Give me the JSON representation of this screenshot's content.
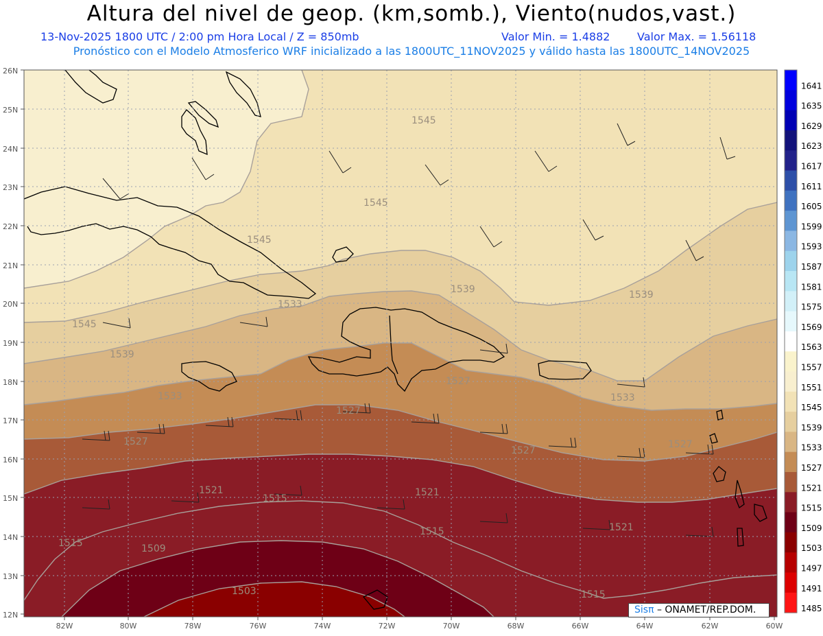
{
  "header": {
    "title": "Altura del nivel de geop. (km,somb.), Viento(nudos,vast.)",
    "date_time": "13-Nov-2025  1800 UTC / 2:00 pm Hora Local / Z = 850mb",
    "min_label": "Valor Min. = 1.4882",
    "max_label": "Valor Max. = 1.56118",
    "model_line": "Pronóstico con el Modelo Atmosferico WRF inicializado a las 1800UTC_11NOV2025 y válido hasta las  1800UTC_14NOV2025"
  },
  "map": {
    "lat_labels": [
      "26N",
      "25N",
      "24N",
      "23N",
      "22N",
      "21N",
      "20N",
      "19N",
      "18N",
      "17N",
      "16N",
      "15N",
      "14N",
      "13N",
      "12N"
    ],
    "lon_labels": [
      "82W",
      "80W",
      "78W",
      "76W",
      "74W",
      "72W",
      "70W",
      "68W",
      "66W",
      "64W",
      "62W",
      "60W"
    ],
    "contour_labels": [
      "1545",
      "1545",
      "1545",
      "1545",
      "1539",
      "1539",
      "1539",
      "1533",
      "1533",
      "1533",
      "1527",
      "1527",
      "1527",
      "1527",
      "1527",
      "1521",
      "1521",
      "1521",
      "1515",
      "1515",
      "1515",
      "1515",
      "1509",
      "1503"
    ],
    "credit_sis": "Sis",
    "credit_pi": "π",
    "credit_rest": " – ONAMET/REP.DOM."
  },
  "colorbar": {
    "levels": [
      "1641",
      "1635",
      "1629",
      "1623",
      "1617",
      "1611",
      "1605",
      "1599",
      "1593",
      "1587",
      "1581",
      "1575",
      "1569",
      "1563",
      "1557",
      "1551",
      "1545",
      "1539",
      "1533",
      "1527",
      "1521",
      "1515",
      "1509",
      "1503",
      "1497",
      "1491",
      "1485"
    ],
    "colors": [
      "#0000ff",
      "#0000dd",
      "#0000b4",
      "#12127a",
      "#22228a",
      "#2d4fa8",
      "#3f72c0",
      "#5e95d2",
      "#8bb7e3",
      "#9dd3ec",
      "#b8e6f4",
      "#d2f0f8",
      "#e6f8fc",
      "#ffffff",
      "#faf3cc",
      "#f8efcf",
      "#f2e2b6",
      "#e6cf9f",
      "#d9b684",
      "#c48c55",
      "#a85a38",
      "#8a1c26",
      "#6e0016",
      "#8a0000",
      "#b60000",
      "#dc0000",
      "#ff1414"
    ]
  }
}
